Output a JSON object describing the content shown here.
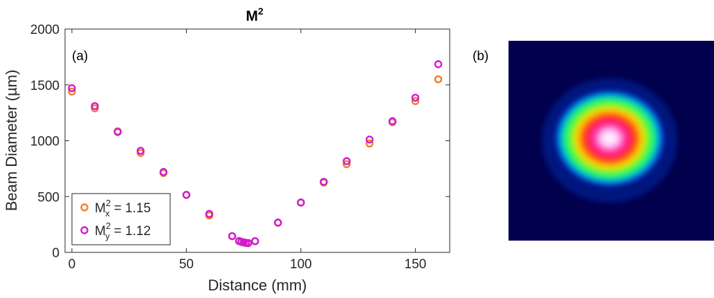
{
  "chart_data": {
    "type": "scatter",
    "title": "M",
    "title_superscript": "2",
    "panel_a_label": "(a)",
    "panel_b_label": "(b)",
    "xlabel": "Distance (mm)",
    "ylabel": "Beam Diameter (µm)",
    "xlim": [
      -3,
      165
    ],
    "ylim": [
      0,
      2000
    ],
    "xticks": [
      0,
      50,
      100,
      150
    ],
    "yticks": [
      0,
      500,
      1000,
      1500,
      2000
    ],
    "legend_position": "bottom-left",
    "series": [
      {
        "name": "Mx",
        "legend_base": "M",
        "legend_sup": "2",
        "legend_sub": "x",
        "legend_value": "=  1.15",
        "color": "#f07d2a",
        "x": [
          0,
          10,
          20,
          30,
          40,
          50,
          60,
          70,
          73,
          74,
          75,
          76,
          77,
          80,
          90,
          100,
          110,
          120,
          130,
          140,
          150,
          160
        ],
        "y": [
          1440,
          1290,
          1085,
          890,
          710,
          515,
          330,
          145,
          100,
          93,
          88,
          84,
          82,
          100,
          265,
          445,
          625,
          790,
          975,
          1165,
          1355,
          1550
        ]
      },
      {
        "name": "My",
        "legend_base": "M",
        "legend_sup": "2",
        "legend_sub": "y",
        "legend_value": "=  1.12",
        "color": "#d11ad1",
        "x": [
          0,
          10,
          20,
          30,
          40,
          50,
          60,
          70,
          73,
          74,
          75,
          76,
          77,
          80,
          90,
          100,
          110,
          120,
          130,
          140,
          150,
          160
        ],
        "y": [
          1470,
          1310,
          1078,
          910,
          720,
          515,
          345,
          145,
          102,
          95,
          90,
          86,
          84,
          100,
          267,
          447,
          632,
          817,
          1010,
          1175,
          1385,
          1685
        ]
      }
    ],
    "beam_image": {
      "description_only": false,
      "background": "#00004d"
    }
  }
}
